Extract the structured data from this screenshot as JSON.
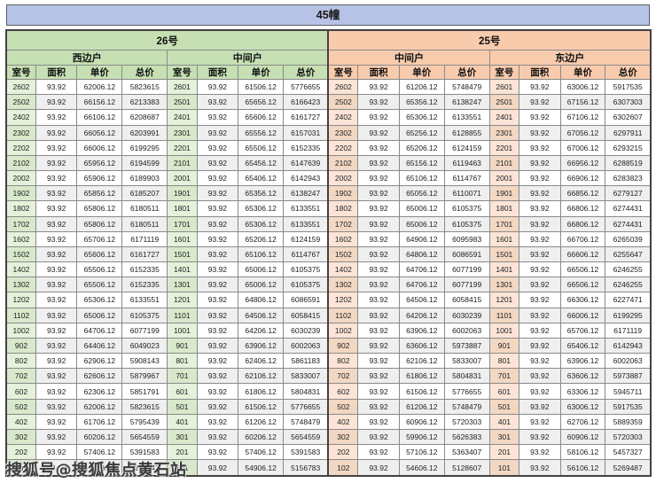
{
  "title": "45幢",
  "watermark": "搜狐号@搜狐焦点黄石站",
  "columns": [
    "室号",
    "面积",
    "单价",
    "总价"
  ],
  "buildings": [
    {
      "name": "26号",
      "header_color": "#c6e0b4",
      "groups": [
        {
          "label": "西边户"
        },
        {
          "label": "中间户"
        }
      ]
    },
    {
      "name": "25号",
      "header_color": "#f8cbad",
      "groups": [
        {
          "label": "中间户"
        },
        {
          "label": "东边户"
        }
      ]
    }
  ],
  "colors": {
    "title_bg": "#b7c3e6",
    "green_header": "#c6e0b4",
    "green_room_cell": "#e5f1db",
    "orange_header": "#f8cbad",
    "orange_room_cell": "#fce4d6",
    "stripe": "#efefef",
    "grid": "#8a8a8a"
  },
  "rows": [
    [
      [
        "2602",
        "93.92",
        "62006.12",
        "5823615"
      ],
      [
        "2601",
        "93.92",
        "61506.12",
        "5776655"
      ],
      [
        "2602",
        "93.92",
        "61206.12",
        "5748479"
      ],
      [
        "2601",
        "93.92",
        "63006.12",
        "5917535"
      ]
    ],
    [
      [
        "2502",
        "93.92",
        "66156.12",
        "6213383"
      ],
      [
        "2501",
        "93.92",
        "65656.12",
        "6166423"
      ],
      [
        "2502",
        "93.92",
        "65356.12",
        "6138247"
      ],
      [
        "2501",
        "93.92",
        "67156.12",
        "6307303"
      ]
    ],
    [
      [
        "2402",
        "93.92",
        "66106.12",
        "6208687"
      ],
      [
        "2401",
        "93.92",
        "65606.12",
        "6161727"
      ],
      [
        "2402",
        "93.92",
        "65306.12",
        "6133551"
      ],
      [
        "2401",
        "93.92",
        "67106.12",
        "6302607"
      ]
    ],
    [
      [
        "2302",
        "93.92",
        "66056.12",
        "6203991"
      ],
      [
        "2301",
        "93.92",
        "65556.12",
        "6157031"
      ],
      [
        "2302",
        "93.92",
        "65256.12",
        "6128855"
      ],
      [
        "2301",
        "93.92",
        "67056.12",
        "6297911"
      ]
    ],
    [
      [
        "2202",
        "93.92",
        "66006.12",
        "6199295"
      ],
      [
        "2201",
        "93.92",
        "65506.12",
        "6152335"
      ],
      [
        "2202",
        "93.92",
        "65206.12",
        "6124159"
      ],
      [
        "2201",
        "93.92",
        "67006.12",
        "6293215"
      ]
    ],
    [
      [
        "2102",
        "93.92",
        "65956.12",
        "6194599"
      ],
      [
        "2101",
        "93.92",
        "65456.12",
        "6147639"
      ],
      [
        "2102",
        "93.92",
        "65156.12",
        "6119463"
      ],
      [
        "2101",
        "93.92",
        "66956.12",
        "6288519"
      ]
    ],
    [
      [
        "2002",
        "93.92",
        "65906.12",
        "6189903"
      ],
      [
        "2001",
        "93.92",
        "65406.12",
        "6142943"
      ],
      [
        "2002",
        "93.92",
        "65106.12",
        "6114767"
      ],
      [
        "2001",
        "93.92",
        "66906.12",
        "6283823"
      ]
    ],
    [
      [
        "1902",
        "93.92",
        "65856.12",
        "6185207"
      ],
      [
        "1901",
        "93.92",
        "65356.12",
        "6138247"
      ],
      [
        "1902",
        "93.92",
        "65056.12",
        "6110071"
      ],
      [
        "1901",
        "93.92",
        "66856.12",
        "6279127"
      ]
    ],
    [
      [
        "1802",
        "93.92",
        "65806.12",
        "6180511"
      ],
      [
        "1801",
        "93.92",
        "65306.12",
        "6133551"
      ],
      [
        "1802",
        "93.92",
        "65006.12",
        "6105375"
      ],
      [
        "1801",
        "93.92",
        "66806.12",
        "6274431"
      ]
    ],
    [
      [
        "1702",
        "93.92",
        "65806.12",
        "6180511"
      ],
      [
        "1701",
        "93.92",
        "65306.12",
        "6133551"
      ],
      [
        "1702",
        "93.92",
        "65006.12",
        "6105375"
      ],
      [
        "1701",
        "93.92",
        "66806.12",
        "6274431"
      ]
    ],
    [
      [
        "1602",
        "93.92",
        "65706.12",
        "6171119"
      ],
      [
        "1601",
        "93.92",
        "65206.12",
        "6124159"
      ],
      [
        "1602",
        "93.92",
        "64906.12",
        "6095983"
      ],
      [
        "1601",
        "93.92",
        "66706.12",
        "6265039"
      ]
    ],
    [
      [
        "1502",
        "93.92",
        "65606.12",
        "6161727"
      ],
      [
        "1501",
        "93.92",
        "65106.12",
        "6114767"
      ],
      [
        "1502",
        "93.92",
        "64806.12",
        "6086591"
      ],
      [
        "1501",
        "93.92",
        "66606.12",
        "6255647"
      ]
    ],
    [
      [
        "1402",
        "93.92",
        "65506.12",
        "6152335"
      ],
      [
        "1401",
        "93.92",
        "65006.12",
        "6105375"
      ],
      [
        "1402",
        "93.92",
        "64706.12",
        "6077199"
      ],
      [
        "1401",
        "93.92",
        "66506.12",
        "6246255"
      ]
    ],
    [
      [
        "1302",
        "93.92",
        "65506.12",
        "6152335"
      ],
      [
        "1301",
        "93.92",
        "65006.12",
        "6105375"
      ],
      [
        "1302",
        "93.92",
        "64706.12",
        "6077199"
      ],
      [
        "1301",
        "93.92",
        "66506.12",
        "6246255"
      ]
    ],
    [
      [
        "1202",
        "93.92",
        "65306.12",
        "6133551"
      ],
      [
        "1201",
        "93.92",
        "64806.12",
        "6086591"
      ],
      [
        "1202",
        "93.92",
        "64506.12",
        "6058415"
      ],
      [
        "1201",
        "93.92",
        "66306.12",
        "6227471"
      ]
    ],
    [
      [
        "1102",
        "93.92",
        "65006.12",
        "6105375"
      ],
      [
        "1101",
        "93.92",
        "64506.12",
        "6058415"
      ],
      [
        "1102",
        "93.92",
        "64206.12",
        "6030239"
      ],
      [
        "1101",
        "93.92",
        "66006.12",
        "6199295"
      ]
    ],
    [
      [
        "1002",
        "93.92",
        "64706.12",
        "6077199"
      ],
      [
        "1001",
        "93.92",
        "64206.12",
        "6030239"
      ],
      [
        "1002",
        "93.92",
        "63906.12",
        "6002063"
      ],
      [
        "1001",
        "93.92",
        "65706.12",
        "6171119"
      ]
    ],
    [
      [
        "902",
        "93.92",
        "64406.12",
        "6049023"
      ],
      [
        "901",
        "93.92",
        "63906.12",
        "6002063"
      ],
      [
        "902",
        "93.92",
        "63606.12",
        "5973887"
      ],
      [
        "901",
        "93.92",
        "65406.12",
        "6142943"
      ]
    ],
    [
      [
        "802",
        "93.92",
        "62906.12",
        "5908143"
      ],
      [
        "801",
        "93.92",
        "62406.12",
        "5861183"
      ],
      [
        "802",
        "93.92",
        "62106.12",
        "5833007"
      ],
      [
        "801",
        "93.92",
        "63906.12",
        "6002063"
      ]
    ],
    [
      [
        "702",
        "93.92",
        "62606.12",
        "5879967"
      ],
      [
        "701",
        "93.92",
        "62106.12",
        "5833007"
      ],
      [
        "702",
        "93.92",
        "61806.12",
        "5804831"
      ],
      [
        "701",
        "93.92",
        "63606.12",
        "5973887"
      ]
    ],
    [
      [
        "602",
        "93.92",
        "62306.12",
        "5851791"
      ],
      [
        "601",
        "93.92",
        "61806.12",
        "5804831"
      ],
      [
        "602",
        "93.92",
        "61506.12",
        "5776655"
      ],
      [
        "601",
        "93.92",
        "63306.12",
        "5945711"
      ]
    ],
    [
      [
        "502",
        "93.92",
        "62006.12",
        "5823615"
      ],
      [
        "501",
        "93.92",
        "61506.12",
        "5776655"
      ],
      [
        "502",
        "93.92",
        "61206.12",
        "5748479"
      ],
      [
        "501",
        "93.92",
        "63006.12",
        "5917535"
      ]
    ],
    [
      [
        "402",
        "93.92",
        "61706.12",
        "5795439"
      ],
      [
        "401",
        "93.92",
        "61206.12",
        "5748479"
      ],
      [
        "402",
        "93.92",
        "60906.12",
        "5720303"
      ],
      [
        "401",
        "93.92",
        "62706.12",
        "5889359"
      ]
    ],
    [
      [
        "302",
        "93.92",
        "60206.12",
        "5654559"
      ],
      [
        "301",
        "93.92",
        "60206.12",
        "5654559"
      ],
      [
        "302",
        "93.92",
        "59906.12",
        "5626383"
      ],
      [
        "301",
        "93.92",
        "60906.12",
        "5720303"
      ]
    ],
    [
      [
        "202",
        "93.92",
        "57406.12",
        "5391583"
      ],
      [
        "201",
        "93.92",
        "57406.12",
        "5391583"
      ],
      [
        "202",
        "93.92",
        "57106.12",
        "5363407"
      ],
      [
        "201",
        "93.92",
        "58106.12",
        "5457327"
      ]
    ],
    [
      [
        "102",
        "93.92",
        "55406.12",
        "5203743"
      ],
      [
        "101",
        "93.92",
        "54906.12",
        "5156783"
      ],
      [
        "102",
        "93.92",
        "54606.12",
        "5128607"
      ],
      [
        "101",
        "93.92",
        "56106.12",
        "5269487"
      ]
    ]
  ]
}
